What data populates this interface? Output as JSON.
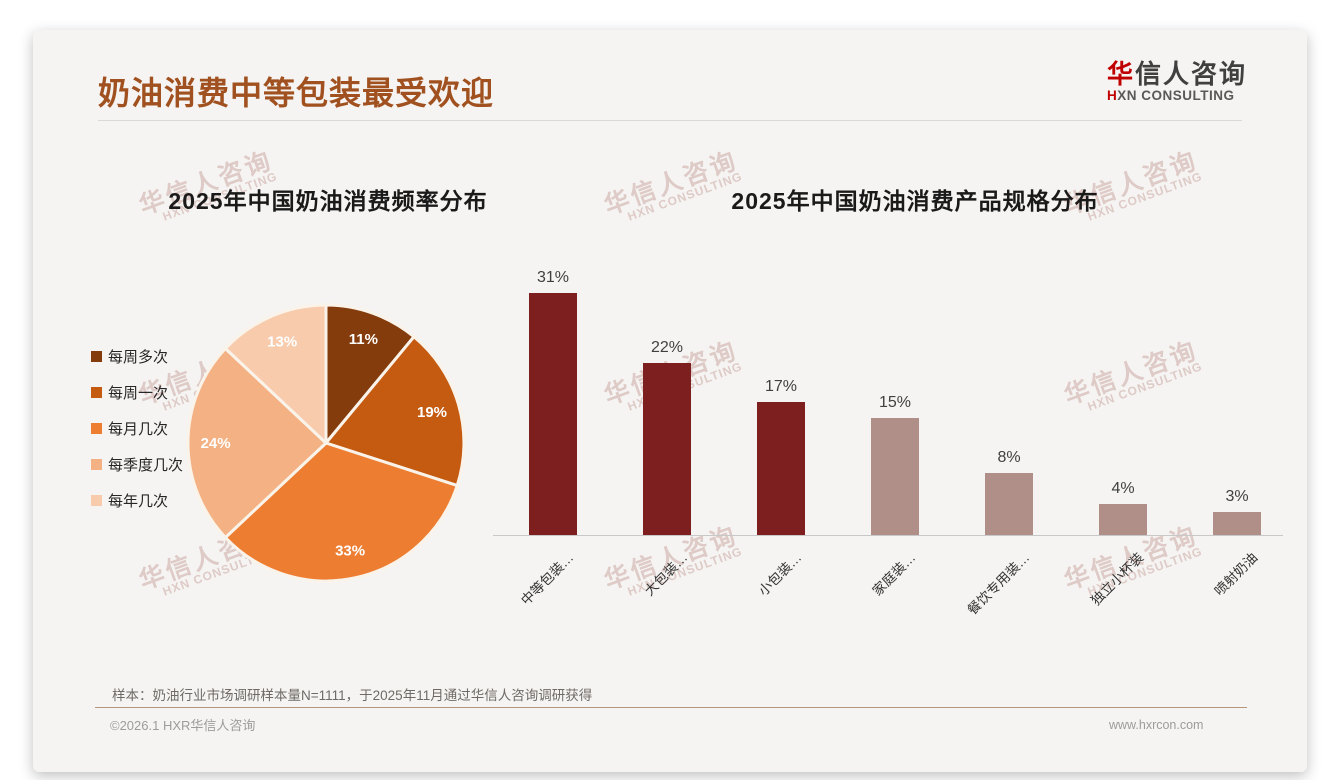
{
  "page": {
    "title": "奶油消费中等包装最受欢迎",
    "logo": {
      "zh_red": "华",
      "zh_rest": "信人咨询",
      "en_red": "H",
      "en_rest": "XN CONSULTING"
    },
    "watermark": {
      "line1": "华信人咨询",
      "line2": "HXN CONSULTING"
    },
    "note": "样本：奶油行业市场调研样本量N=1111，于2025年11月通过华信人咨询调研获得",
    "footer_left": "©2026.1 HXR华信人咨询",
    "footer_right": "www.hxrcon.com"
  },
  "colors": {
    "accent_title": "#a0511f",
    "bar_dark_red": "#7e1f1f",
    "bar_mauve": "#af8f88",
    "pie_border": "#faf3ea"
  },
  "chart_data": [
    {
      "type": "pie",
      "title": "2025年中国奶油消费频率分布",
      "categories": [
        "每周多次",
        "每周一次",
        "每月几次",
        "每季度几次",
        "每年几次"
      ],
      "values": [
        11,
        19,
        33,
        24,
        13
      ],
      "labels": [
        "11%",
        "19%",
        "33%",
        "24%",
        "13%"
      ],
      "colors": [
        "#843c0c",
        "#c55a11",
        "#ed7d31",
        "#f4b183",
        "#f8cbad"
      ],
      "start_angle_deg": 0,
      "direction": "clockwise",
      "legend_position": "left",
      "label_color": "#ffffff",
      "grid": false
    },
    {
      "type": "bar",
      "title": "2025年中国奶油消费产品规格分布",
      "categories": [
        "中等包装…",
        "大包装…",
        "小包装…",
        "家庭装…",
        "餐饮专用装…",
        "独立小杯装",
        "喷射奶油"
      ],
      "values": [
        31,
        22,
        17,
        15,
        8,
        4,
        3
      ],
      "labels": [
        "31%",
        "22%",
        "17%",
        "15%",
        "8%",
        "4%",
        "3%"
      ],
      "bar_colors": [
        "#7e1f1f",
        "#7e1f1f",
        "#7e1f1f",
        "#af8f88",
        "#af8f88",
        "#af8f88",
        "#af8f88"
      ],
      "xlabel": "",
      "ylabel": "",
      "ylim": [
        0,
        35
      ],
      "grid": false,
      "legend_position": "none",
      "value_label_color": "#404040"
    }
  ]
}
